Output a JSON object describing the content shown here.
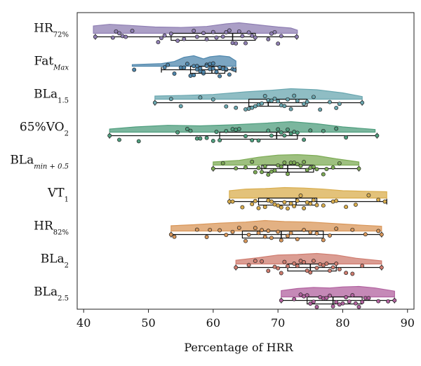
{
  "chart_data": {
    "type": "raincloud",
    "xlabel": "Percentage of HRR",
    "xlim": [
      39,
      91
    ],
    "xticks": [
      40,
      50,
      60,
      70,
      80,
      90
    ],
    "grid": false,
    "categories": [
      {
        "main": "HR",
        "sub": "72%",
        "color": "#8f7fb3",
        "whisker": [
          41.8,
          72.9
        ],
        "box": [
          53.5,
          66.5
        ],
        "median": 63.0,
        "density": [
          [
            41.5,
            0.7
          ],
          [
            44,
            0.85
          ],
          [
            47,
            0.75
          ],
          [
            51,
            0.6
          ],
          [
            55,
            0.55
          ],
          [
            59,
            0.65
          ],
          [
            62,
            0.9
          ],
          [
            64,
            1.0
          ],
          [
            67,
            0.8
          ],
          [
            70,
            0.6
          ],
          [
            72,
            0.5
          ],
          [
            73,
            0.3
          ]
        ],
        "points": [
          41.8,
          44.5,
          45.0,
          45.5,
          46.0,
          46.5,
          47.5,
          51.5,
          52.0,
          52.5,
          53.5,
          54.5,
          55.5,
          57.0,
          57.5,
          58.5,
          59.0,
          60.0,
          60.5,
          61.5,
          62.0,
          62.5,
          63.0,
          63.5,
          64.0,
          64.5,
          65.0,
          65.5,
          66.0,
          66.5,
          68.5,
          69.0,
          69.5,
          70.0,
          70.5,
          72.9
        ]
      },
      {
        "main": "Fat",
        "sub": "Max",
        "color": "#4f87ad",
        "whisker": [
          52.0,
          63.5
        ],
        "box": [
          56.5,
          61.8
        ],
        "median": 59.8,
        "density": [
          [
            47.5,
            0.15
          ],
          [
            52,
            0.25
          ],
          [
            54,
            0.45
          ],
          [
            55.5,
            0.85
          ],
          [
            57,
            1.0
          ],
          [
            58.5,
            0.7
          ],
          [
            59.5,
            0.9
          ],
          [
            61,
            1.0
          ],
          [
            62.5,
            0.9
          ],
          [
            63.5,
            0.5
          ]
        ],
        "points": [
          47.8,
          52.5,
          53.0,
          54.0,
          55.0,
          55.5,
          56.0,
          56.5,
          57.0,
          57.0,
          57.5,
          57.5,
          58.0,
          58.0,
          58.5,
          58.5,
          59.0,
          59.0,
          59.5,
          59.5,
          60.0,
          60.0,
          60.5,
          60.5,
          61.0,
          61.0,
          61.5,
          62.0,
          62.0,
          62.5,
          63.0,
          63.3
        ]
      },
      {
        "main": "BLa",
        "sub": "1.5",
        "color": "#6aa7b0",
        "whisker": [
          51.0,
          83.0
        ],
        "box": [
          65.5,
          74.5
        ],
        "median": 68.5,
        "density": [
          [
            51,
            0.3
          ],
          [
            55,
            0.35
          ],
          [
            60,
            0.45
          ],
          [
            65,
            0.7
          ],
          [
            69,
            0.85
          ],
          [
            72,
            1.0
          ],
          [
            76,
            0.9
          ],
          [
            80,
            0.6
          ],
          [
            83,
            0.25
          ]
        ],
        "points": [
          51.0,
          53.5,
          55.0,
          58.0,
          60.0,
          62.0,
          63.5,
          65.0,
          65.5,
          66.0,
          66.5,
          67.0,
          67.5,
          68.0,
          68.5,
          69.0,
          69.5,
          70.0,
          70.5,
          71.0,
          71.5,
          72.0,
          72.5,
          73.0,
          74.0,
          74.5,
          75.5,
          76.5,
          78.0,
          79.0,
          79.5,
          83.0
        ]
      },
      {
        "main": "65%VO",
        "sub": "2",
        "color": "#4f9e7e",
        "whisker": [
          44.0,
          85.3
        ],
        "box": [
          61.0,
          73.0
        ],
        "median": 69.8,
        "density": [
          [
            44,
            0.3
          ],
          [
            48,
            0.5
          ],
          [
            53,
            0.65
          ],
          [
            58,
            0.6
          ],
          [
            63,
            0.7
          ],
          [
            68,
            0.85
          ],
          [
            72,
            1.0
          ],
          [
            76,
            0.8
          ],
          [
            80,
            0.5
          ],
          [
            85,
            0.25
          ]
        ],
        "points": [
          44.0,
          45.5,
          48.5,
          54.5,
          56.0,
          56.5,
          57.5,
          58.0,
          59.0,
          60.0,
          60.5,
          61.0,
          62.0,
          63.0,
          63.5,
          64.0,
          65.0,
          66.0,
          67.0,
          68.5,
          69.0,
          70.0,
          70.5,
          71.0,
          71.5,
          72.0,
          72.5,
          73.0,
          74.0,
          75.0,
          77.0,
          79.0,
          80.5,
          85.3
        ]
      },
      {
        "main": "BLa",
        "sub": "min + 0.5",
        "color": "#7dab55",
        "whisker": [
          60.0,
          82.5
        ],
        "box": [
          67.5,
          75.5
        ],
        "median": 71.5,
        "density": [
          [
            60,
            0.3
          ],
          [
            64,
            0.45
          ],
          [
            67,
            0.75
          ],
          [
            70,
            0.95
          ],
          [
            73,
            1.0
          ],
          [
            76,
            0.9
          ],
          [
            79,
            0.6
          ],
          [
            82.5,
            0.3
          ]
        ],
        "points": [
          60.0,
          61.5,
          63.5,
          65.0,
          66.0,
          66.5,
          67.0,
          67.5,
          68.0,
          68.5,
          69.0,
          69.5,
          70.0,
          70.5,
          71.0,
          71.5,
          72.0,
          72.5,
          73.0,
          73.5,
          74.0,
          74.5,
          75.0,
          75.5,
          76.0,
          77.0,
          77.5,
          78.5,
          79.5,
          82.5
        ]
      },
      {
        "main": "VT",
        "sub": "1",
        "color": "#d9ad4e",
        "whisker": [
          62.5,
          86.8
        ],
        "box": [
          67.0,
          76.0
        ],
        "median": 72.8,
        "density": [
          [
            62.5,
            0.7
          ],
          [
            65,
            0.85
          ],
          [
            68,
            0.9
          ],
          [
            71,
            1.0
          ],
          [
            74,
            0.95
          ],
          [
            77,
            0.85
          ],
          [
            80,
            0.7
          ],
          [
            83,
            0.65
          ],
          [
            86.8,
            0.6
          ]
        ],
        "points": [
          62.5,
          63.0,
          64.5,
          66.0,
          66.5,
          67.0,
          68.0,
          68.5,
          69.0,
          69.5,
          70.0,
          70.5,
          71.0,
          71.5,
          72.0,
          72.5,
          73.0,
          73.5,
          74.0,
          74.5,
          75.0,
          75.5,
          76.0,
          77.0,
          78.5,
          79.0,
          80.5,
          82.0,
          84.0,
          85.5,
          86.5
        ]
      },
      {
        "main": "HR",
        "sub": "82%",
        "color": "#d9975a",
        "whisker": [
          53.5,
          86.0
        ],
        "box": [
          64.5,
          77.0
        ],
        "median": 70.5,
        "density": [
          [
            53.5,
            0.5
          ],
          [
            57,
            0.6
          ],
          [
            61,
            0.75
          ],
          [
            65,
            0.85
          ],
          [
            68,
            1.0
          ],
          [
            71,
            0.9
          ],
          [
            75,
            0.85
          ],
          [
            79,
            0.7
          ],
          [
            83,
            0.55
          ],
          [
            86,
            0.45
          ]
        ],
        "points": [
          53.5,
          54.0,
          57.5,
          59.0,
          59.5,
          61.0,
          62.0,
          63.0,
          64.0,
          65.0,
          65.5,
          66.5,
          67.0,
          67.5,
          68.0,
          68.5,
          69.0,
          70.0,
          70.5,
          71.5,
          72.0,
          73.0,
          74.0,
          75.0,
          76.0,
          77.0,
          78.0,
          79.0,
          81.5,
          83.5,
          85.5,
          86.0
        ]
      },
      {
        "main": "BLa",
        "sub": "2",
        "color": "#cf7c6f",
        "whisker": [
          63.5,
          86.0
        ],
        "box": [
          71.5,
          79.0
        ],
        "median": 75.0,
        "density": [
          [
            63.5,
            0.35
          ],
          [
            67,
            0.6
          ],
          [
            70,
            0.85
          ],
          [
            73,
            0.9
          ],
          [
            76,
            1.0
          ],
          [
            79,
            0.85
          ],
          [
            82,
            0.55
          ],
          [
            86,
            0.3
          ]
        ],
        "points": [
          63.5,
          65.5,
          66.5,
          67.5,
          68.5,
          69.5,
          70.0,
          70.5,
          71.0,
          71.5,
          72.5,
          73.0,
          73.5,
          74.0,
          74.5,
          75.0,
          75.5,
          76.0,
          76.5,
          77.0,
          77.5,
          78.0,
          78.5,
          79.0,
          79.5,
          80.5,
          81.5,
          83.0,
          86.0
        ]
      },
      {
        "main": "BLa",
        "sub": "2.5",
        "color": "#b1629f",
        "whisker": [
          70.5,
          88.0
        ],
        "box": [
          74.5,
          83.0
        ],
        "median": 78.5,
        "density": [
          [
            70.5,
            0.6
          ],
          [
            73,
            0.8
          ],
          [
            75.5,
            0.9
          ],
          [
            78,
            0.85
          ],
          [
            80,
            0.95
          ],
          [
            82.5,
            1.0
          ],
          [
            85,
            0.85
          ],
          [
            88,
            0.55
          ]
        ],
        "points": [
          70.5,
          72.5,
          73.5,
          74.0,
          74.5,
          75.0,
          75.5,
          76.0,
          76.5,
          77.0,
          77.5,
          78.0,
          78.5,
          79.0,
          79.5,
          80.0,
          80.5,
          81.0,
          81.5,
          82.0,
          82.5,
          83.0,
          83.5,
          84.0,
          85.5,
          87.0,
          88.0
        ]
      }
    ]
  }
}
